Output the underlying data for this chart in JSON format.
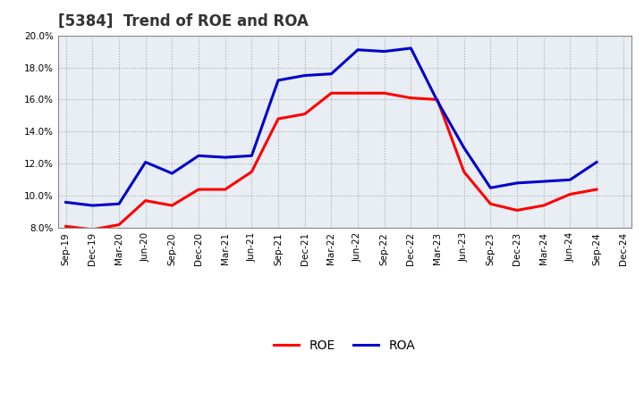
{
  "title": "[5384]  Trend of ROE and ROA",
  "x_labels": [
    "Sep-19",
    "Dec-19",
    "Mar-20",
    "Jun-20",
    "Sep-20",
    "Dec-20",
    "Mar-21",
    "Jun-21",
    "Sep-21",
    "Dec-21",
    "Mar-22",
    "Jun-22",
    "Sep-22",
    "Dec-22",
    "Mar-23",
    "Jun-23",
    "Sep-23",
    "Dec-23",
    "Mar-24",
    "Jun-24",
    "Sep-24",
    "Dec-24"
  ],
  "ROE": [
    8.1,
    7.9,
    8.2,
    9.7,
    9.4,
    10.4,
    10.4,
    11.5,
    14.8,
    15.1,
    16.4,
    16.4,
    16.4,
    16.1,
    16.0,
    11.5,
    9.5,
    9.1,
    9.4,
    10.1,
    10.4,
    null
  ],
  "ROA": [
    9.6,
    9.4,
    9.5,
    12.1,
    11.4,
    12.5,
    12.4,
    12.5,
    17.2,
    17.5,
    17.6,
    19.1,
    19.0,
    19.2,
    15.9,
    13.0,
    10.5,
    10.8,
    10.9,
    11.0,
    12.1,
    null
  ],
  "ylim": [
    8.0,
    20.0
  ],
  "yticks": [
    8.0,
    10.0,
    12.0,
    14.0,
    16.0,
    18.0,
    20.0
  ],
  "roe_color": "#FF0000",
  "roa_color": "#0000CC",
  "plot_bg_color": "#E8EEF4",
  "background_color": "#FFFFFF",
  "grid_color": "#AAAAAA",
  "line_width": 2.2,
  "title_fontsize": 12,
  "tick_fontsize": 7.5
}
